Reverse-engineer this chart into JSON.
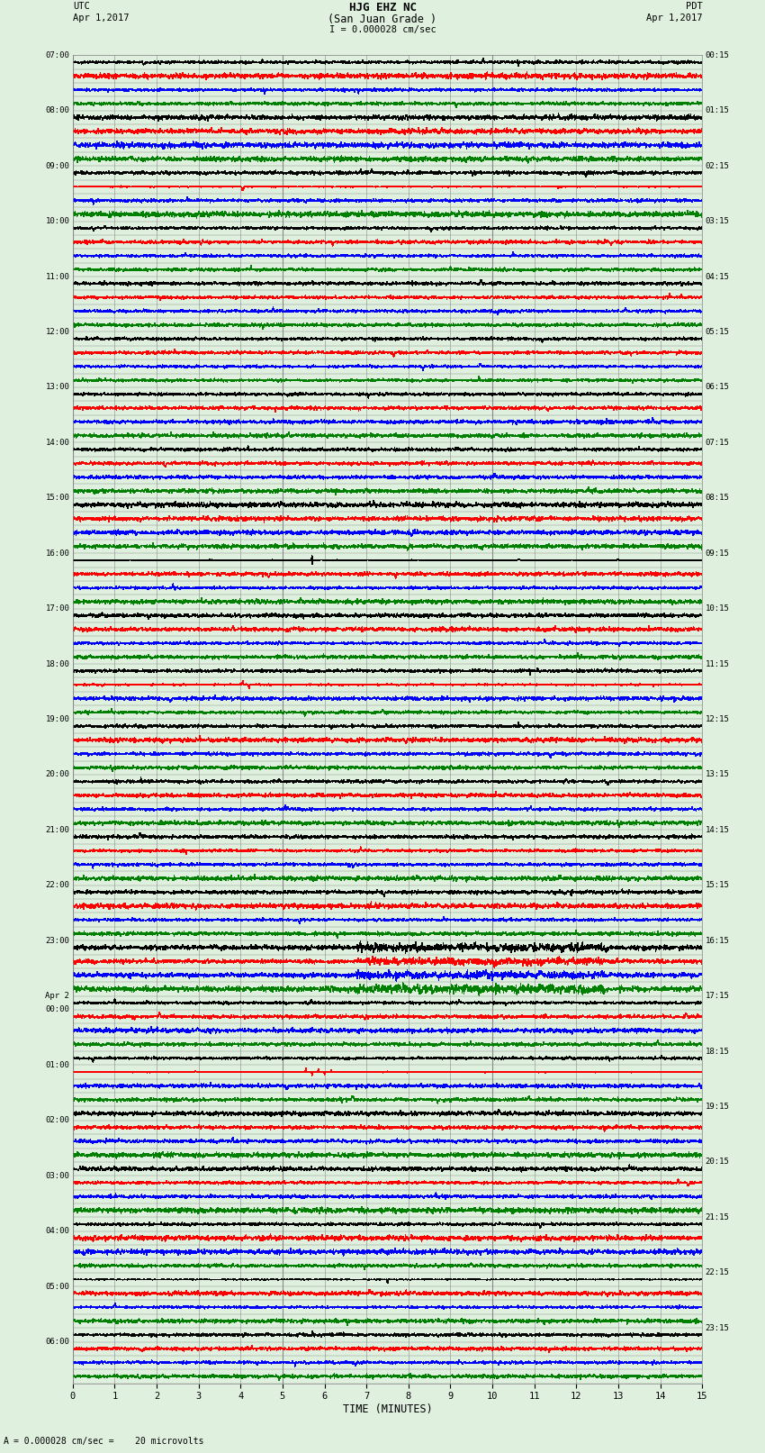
{
  "title_line1": "HJG EHZ NC",
  "title_line2": "(San Juan Grade )",
  "title_line3": "I = 0.000028 cm/sec",
  "xlabel": "TIME (MINUTES)",
  "bottom_note": "= 0.000028 cm/sec =    20 microvolts",
  "scale_label": "A",
  "xmin": 0,
  "xmax": 15,
  "xticks": [
    0,
    1,
    2,
    3,
    4,
    5,
    6,
    7,
    8,
    9,
    10,
    11,
    12,
    13,
    14,
    15
  ],
  "num_rows": 96,
  "colors_cycle": [
    "black",
    "red",
    "blue",
    "green"
  ],
  "background_color": "#dff0df",
  "grid_color": "#888888",
  "utc_labels": [
    [
      0,
      "07:00"
    ],
    [
      4,
      "08:00"
    ],
    [
      8,
      "09:00"
    ],
    [
      12,
      "10:00"
    ],
    [
      16,
      "11:00"
    ],
    [
      20,
      "12:00"
    ],
    [
      24,
      "13:00"
    ],
    [
      28,
      "14:00"
    ],
    [
      32,
      "15:00"
    ],
    [
      36,
      "16:00"
    ],
    [
      40,
      "17:00"
    ],
    [
      44,
      "18:00"
    ],
    [
      48,
      "19:00"
    ],
    [
      52,
      "20:00"
    ],
    [
      56,
      "21:00"
    ],
    [
      60,
      "22:00"
    ],
    [
      64,
      "23:00"
    ],
    [
      68,
      "Apr 2"
    ],
    [
      69,
      "00:00"
    ],
    [
      73,
      "01:00"
    ],
    [
      77,
      "02:00"
    ],
    [
      81,
      "03:00"
    ],
    [
      85,
      "04:00"
    ],
    [
      89,
      "05:00"
    ],
    [
      93,
      "06:00"
    ]
  ],
  "pdt_labels": [
    [
      0,
      "00:15"
    ],
    [
      4,
      "01:15"
    ],
    [
      8,
      "02:15"
    ],
    [
      12,
      "03:15"
    ],
    [
      16,
      "04:15"
    ],
    [
      20,
      "05:15"
    ],
    [
      24,
      "06:15"
    ],
    [
      28,
      "07:15"
    ],
    [
      32,
      "08:15"
    ],
    [
      36,
      "09:15"
    ],
    [
      40,
      "10:15"
    ],
    [
      44,
      "11:15"
    ],
    [
      48,
      "12:15"
    ],
    [
      52,
      "13:15"
    ],
    [
      56,
      "14:15"
    ],
    [
      60,
      "15:15"
    ],
    [
      64,
      "16:15"
    ],
    [
      68,
      "17:15"
    ],
    [
      72,
      "18:15"
    ],
    [
      76,
      "19:15"
    ],
    [
      80,
      "20:15"
    ],
    [
      84,
      "21:15"
    ],
    [
      88,
      "22:15"
    ],
    [
      92,
      "23:15"
    ]
  ],
  "figsize": [
    8.5,
    16.13
  ],
  "dpi": 100
}
